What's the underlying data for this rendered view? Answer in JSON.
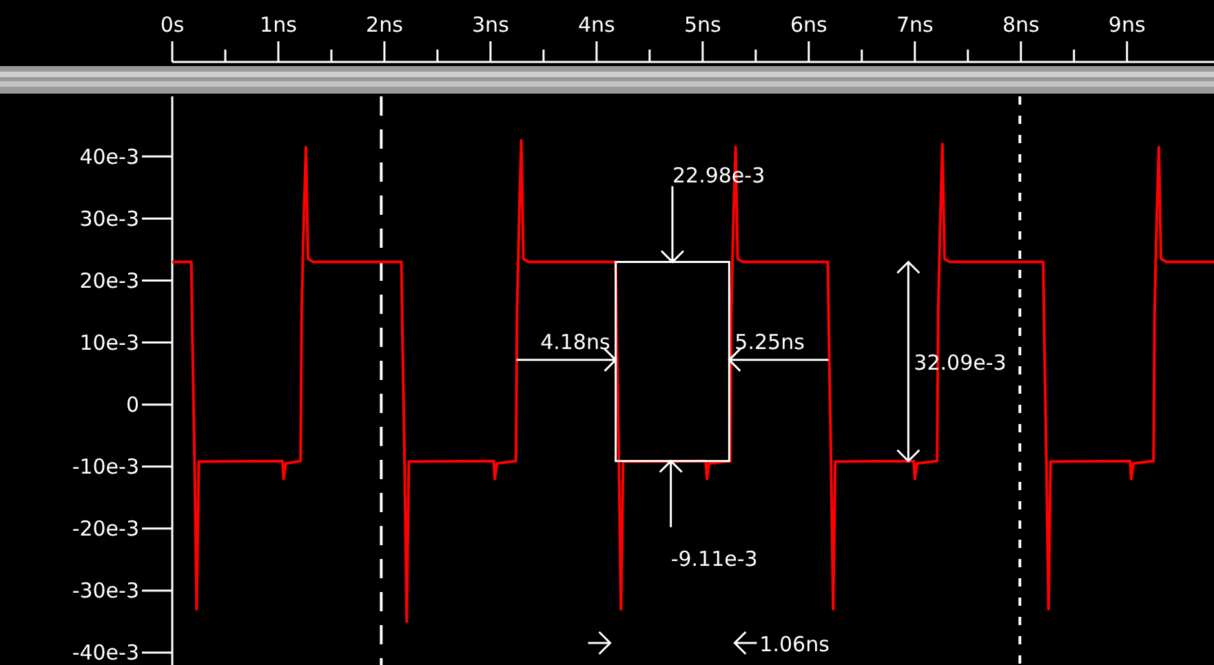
{
  "chart_data": {
    "type": "line",
    "xlim": [
      0,
      9.82
    ],
    "ylim": [
      -0.042,
      0.0497
    ],
    "xticks": [
      {
        "value": 0,
        "label": "0s"
      },
      {
        "value": 1,
        "label": "1ns"
      },
      {
        "value": 2,
        "label": "2ns"
      },
      {
        "value": 3,
        "label": "3ns"
      },
      {
        "value": 4,
        "label": "4ns"
      },
      {
        "value": 5,
        "label": "5ns"
      },
      {
        "value": 6,
        "label": "6ns"
      },
      {
        "value": 7,
        "label": "7ns"
      },
      {
        "value": 8,
        "label": "8ns"
      },
      {
        "value": 9,
        "label": "9ns"
      }
    ],
    "yticks": [
      {
        "value": 0.04,
        "label": "40e-3"
      },
      {
        "value": 0.03,
        "label": "30e-3"
      },
      {
        "value": 0.02,
        "label": "20e-3"
      },
      {
        "value": 0.01,
        "label": "10e-3"
      },
      {
        "value": 0,
        "label": "0"
      },
      {
        "value": -0.01,
        "label": "-10e-3"
      },
      {
        "value": -0.02,
        "label": "-20e-3"
      },
      {
        "value": -0.03,
        "label": "-30e-3"
      },
      {
        "value": -0.04,
        "label": "-40e-3"
      }
    ],
    "grid": false,
    "marker": "none",
    "line_style": "solid",
    "x": [
      0,
      0.18,
      0.19,
      0.21,
      0.23,
      0.25,
      1.04,
      1.05,
      1.07,
      1.21,
      1.22,
      1.24,
      1.26,
      1.28,
      1.33,
      2.16,
      2.17,
      2.19,
      2.21,
      2.23,
      3.03,
      3.04,
      3.06,
      3.24,
      3.25,
      3.27,
      3.29,
      3.31,
      3.36,
      4.18,
      4.19,
      4.21,
      4.23,
      4.25,
      5.03,
      5.04,
      5.06,
      5.26,
      5.27,
      5.29,
      5.31,
      5.33,
      5.38,
      6.18,
      6.19,
      6.21,
      6.23,
      6.25,
      6.99,
      7.0,
      7.02,
      7.21,
      7.22,
      7.24,
      7.26,
      7.28,
      7.33,
      8.21,
      8.22,
      8.24,
      8.26,
      8.28,
      9.03,
      9.04,
      9.06,
      9.25,
      9.26,
      9.28,
      9.3,
      9.32,
      9.37,
      9.82
    ],
    "series": [
      {
        "color": "#ff0000",
        "values": [
          0.023,
          0.023,
          0.011,
          -0.009,
          -0.033,
          -0.0092,
          -0.0091,
          -0.012,
          -0.0095,
          -0.0091,
          0.015,
          0.03,
          0.0415,
          0.0235,
          0.023,
          0.023,
          0.011,
          -0.009,
          -0.035,
          -0.0092,
          -0.0091,
          -0.012,
          -0.0095,
          -0.0091,
          0.015,
          0.03,
          0.0426,
          0.0235,
          0.023,
          0.023,
          0.011,
          -0.009,
          -0.033,
          -0.0092,
          -0.0091,
          -0.012,
          -0.0095,
          -0.0091,
          0.015,
          0.03,
          0.0415,
          0.0235,
          0.023,
          0.023,
          0.011,
          -0.009,
          -0.033,
          -0.0092,
          -0.0091,
          -0.012,
          -0.0095,
          -0.0091,
          0.015,
          0.03,
          0.042,
          0.0235,
          0.023,
          0.023,
          0.011,
          -0.009,
          -0.033,
          -0.0092,
          -0.0091,
          -0.012,
          -0.0095,
          -0.0091,
          0.015,
          0.03,
          0.0415,
          0.0235,
          0.023,
          0.023
        ]
      }
    ],
    "ref_lines": [
      {
        "axis": "x",
        "value": 1.97,
        "color": "#ffffff",
        "line_style": "dashed"
      },
      {
        "axis": "x",
        "value": 7.99,
        "color": "#ffffff",
        "line_style": "dotted"
      }
    ],
    "annotations": [
      "22.98e-3",
      {
        "text": "-9.11e-3",
        "x": 4.7,
        "y": -0.00911
      },
      {
        "text": "4.18ns",
        "x": 4.18,
        "y": 0.0072
      },
      {
        "text": "5.25ns",
        "x": 5.25,
        "y": 0.0072
      },
      "32.09e-3",
      "1.06ns"
    ]
  }
}
